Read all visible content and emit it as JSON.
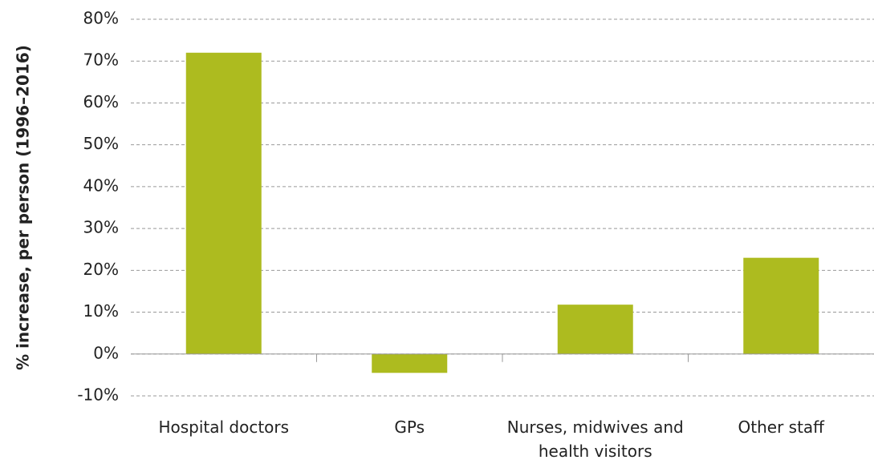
{
  "chart_data": {
    "type": "bar",
    "y_axis_label": "% increase, per person (1996–2016)",
    "categories": [
      "Hospital doctors",
      "GPs",
      "Nurses, midwives and health visitors",
      "Other staff"
    ],
    "values": [
      72,
      -4.5,
      11.8,
      23
    ],
    "color": "#adbb1f",
    "ylim": [
      -10,
      80
    ],
    "yticks": [
      {
        "value": -10,
        "label": "-10%"
      },
      {
        "value": 0,
        "label": "0%"
      },
      {
        "value": 10,
        "label": "10%"
      },
      {
        "value": 20,
        "label": "20%"
      },
      {
        "value": 30,
        "label": "30%"
      },
      {
        "value": 40,
        "label": "40%"
      },
      {
        "value": 50,
        "label": "50%"
      },
      {
        "value": 60,
        "label": "60%"
      },
      {
        "value": 70,
        "label": "70%"
      },
      {
        "value": 80,
        "label": "80%"
      }
    ],
    "grid": true
  }
}
